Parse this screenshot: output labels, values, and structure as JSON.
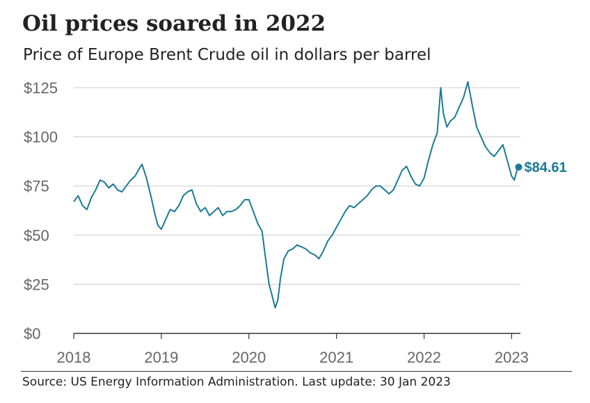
{
  "header": {
    "title": "Oil prices soared in 2022",
    "subtitle": "Price of Europe Brent Crude oil in dollars per barrel"
  },
  "footer": {
    "source": "Source: US Energy Information Administration. Last update: 30 Jan 2023"
  },
  "colors": {
    "line": "#1a7a96",
    "grid": "#cccccc",
    "axis": "#333333",
    "tick_text": "#666666"
  },
  "chart_data": {
    "type": "line",
    "x_unit": "year",
    "y_unit": "USD per barrel",
    "xlim": [
      2018.0,
      2023.1
    ],
    "ylim": [
      0,
      125
    ],
    "x_ticks": [
      2018,
      2019,
      2020,
      2021,
      2022,
      2023
    ],
    "x_tick_labels": [
      "2018",
      "2019",
      "2020",
      "2021",
      "2022",
      "2023"
    ],
    "y_ticks": [
      0,
      25,
      50,
      75,
      100,
      125
    ],
    "y_tick_labels": [
      "$0",
      "$25",
      "$50",
      "$75",
      "$100",
      "$125"
    ],
    "grid": "horizontal",
    "end_label": "$84.61",
    "end_value": 84.61,
    "series": [
      {
        "x": [
          2018.0,
          2018.05,
          2018.1,
          2018.15,
          2018.2,
          2018.25,
          2018.3,
          2018.35,
          2018.4,
          2018.45,
          2018.5,
          2018.55,
          2018.6,
          2018.65,
          2018.7,
          2018.75,
          2018.78,
          2018.83,
          2018.88,
          2018.92,
          2018.96,
          2019.0,
          2019.05,
          2019.1,
          2019.15,
          2019.2,
          2019.25,
          2019.3,
          2019.35,
          2019.4,
          2019.45,
          2019.5,
          2019.55,
          2019.6,
          2019.65,
          2019.7,
          2019.75,
          2019.8,
          2019.85,
          2019.9,
          2019.95,
          2020.0,
          2020.05,
          2020.1,
          2020.15,
          2020.2,
          2020.23,
          2020.26,
          2020.3,
          2020.33,
          2020.36,
          2020.4,
          2020.45,
          2020.5,
          2020.55,
          2020.6,
          2020.65,
          2020.7,
          2020.75,
          2020.8,
          2020.85,
          2020.9,
          2020.95,
          2021.0,
          2021.05,
          2021.1,
          2021.15,
          2021.2,
          2021.25,
          2021.3,
          2021.35,
          2021.4,
          2021.45,
          2021.5,
          2021.55,
          2021.6,
          2021.65,
          2021.7,
          2021.75,
          2021.8,
          2021.85,
          2021.9,
          2021.95,
          2022.0,
          2022.05,
          2022.1,
          2022.15,
          2022.19,
          2022.22,
          2022.26,
          2022.3,
          2022.35,
          2022.4,
          2022.45,
          2022.5,
          2022.55,
          2022.6,
          2022.65,
          2022.7,
          2022.75,
          2022.8,
          2022.85,
          2022.9,
          2022.95,
          2023.0,
          2023.03,
          2023.06,
          2023.08
        ],
        "y": [
          67,
          70,
          65,
          63,
          69,
          73,
          78,
          77,
          74,
          76,
          73,
          72,
          75,
          78,
          80,
          84,
          86,
          79,
          70,
          62,
          55,
          53,
          58,
          63,
          62,
          65,
          70,
          72,
          73,
          66,
          62,
          64,
          60,
          62,
          64,
          60,
          62,
          62,
          63,
          65,
          68,
          68,
          62,
          56,
          52,
          35,
          25,
          20,
          13,
          17,
          28,
          38,
          42,
          43,
          45,
          44,
          43,
          41,
          40,
          38,
          42,
          47,
          50,
          54,
          58,
          62,
          65,
          64,
          66,
          68,
          70,
          73,
          75,
          75,
          73,
          71,
          73,
          78,
          83,
          85,
          80,
          76,
          75,
          79,
          88,
          96,
          102,
          125,
          112,
          105,
          108,
          110,
          115,
          120,
          128,
          116,
          105,
          100,
          95,
          92,
          90,
          93,
          96,
          88,
          80,
          78,
          83,
          84.61
        ]
      }
    ]
  }
}
